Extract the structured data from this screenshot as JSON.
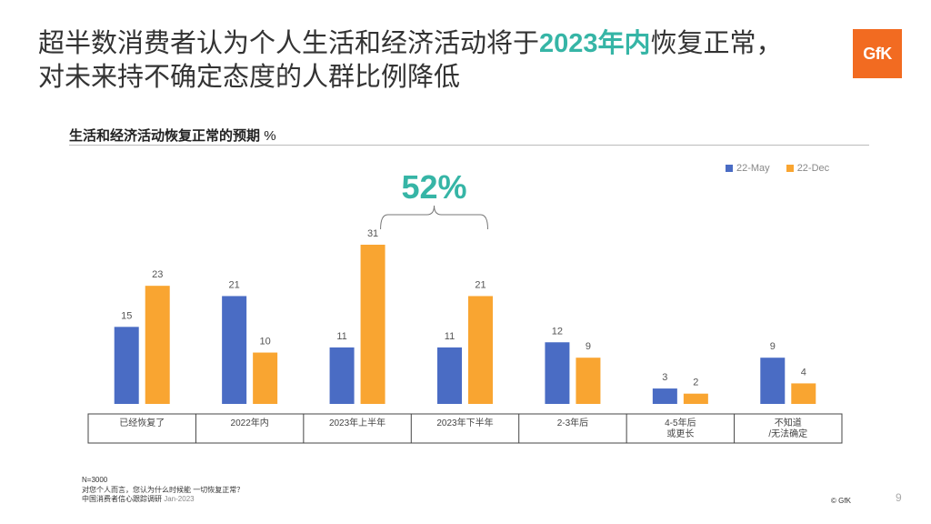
{
  "title": {
    "part1": "超半数消费者认为个人生活和经济活动将于",
    "highlight": "2023年内",
    "part2": "恢复正常，",
    "line2": "对未来持不确定态度的人群比例降低"
  },
  "logo_text": "GfK",
  "subtitle": {
    "text": "生活和经济活动恢复正常的预期",
    "unit": "%"
  },
  "colors": {
    "may": "#4a6cc4",
    "dec": "#f9a531",
    "accent": "#36b5a6",
    "logo": "#f26b21"
  },
  "chart_data": {
    "type": "bar",
    "categories": [
      "已经恢复了",
      "2022年内",
      "2023年上半年",
      "2023年下半年",
      "2-3年后",
      "4-5年后\n或更长",
      "不知道\n/无法确定"
    ],
    "series": [
      {
        "name": "22-May",
        "values": [
          15,
          21,
          11,
          11,
          12,
          3,
          9
        ]
      },
      {
        "name": "22-Dec",
        "values": [
          23,
          10,
          31,
          21,
          9,
          2,
          4
        ]
      }
    ],
    "annotation": "52%",
    "ylim": [
      0,
      35
    ],
    "grid": false,
    "legend_position": "top-right"
  },
  "footnote": {
    "n": "N=3000",
    "question": "对您个人而言，您认为什么时候能 一切恢复正常？",
    "source": "中国消费者信心跟踪调研",
    "date": "Jan-2023"
  },
  "copyright": "© GfK",
  "page_number": "9"
}
